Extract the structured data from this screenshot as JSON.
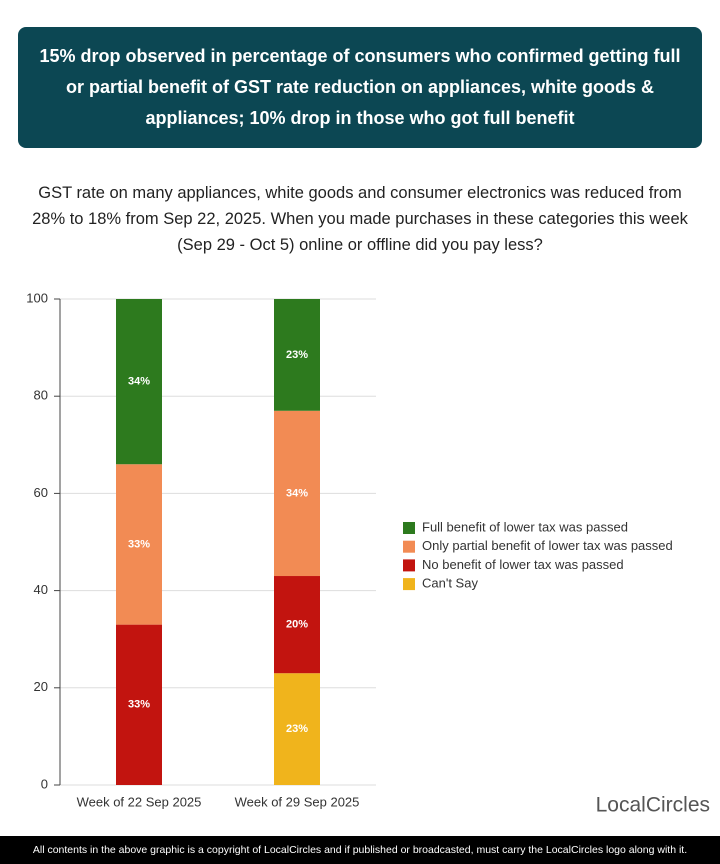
{
  "chart_data": {
    "type": "stacked_bar",
    "title": "15% drop observed in percentage of consumers who confirmed getting full or partial benefit of GST rate reduction on appliances, white goods & appliances; 10% drop in those who got full benefit",
    "subtitle": "GST rate on many appliances, white goods and consumer electronics was reduced from 28% to 18% from Sep 22, 2025. When you made purchases in these categories this week (Sep 29 - Oct 5) online or offline did you pay less?",
    "categories": [
      "Week of 22 Sep 2025",
      "Week of 29 Sep 2025"
    ],
    "series": [
      {
        "name": "Full benefit of lower tax was passed",
        "color": "#2d7a1e",
        "values": [
          34,
          23
        ],
        "value_labels": [
          "34%",
          "23%"
        ]
      },
      {
        "name": "Only partial benefit of lower tax was passed",
        "color": "#f28b54",
        "values": [
          33,
          34
        ],
        "value_labels": [
          "33%",
          "34%"
        ]
      },
      {
        "name": "No benefit of lower tax was passed",
        "color": "#c2140f",
        "values": [
          33,
          20
        ],
        "value_labels": [
          "33%",
          "20%"
        ]
      },
      {
        "name": "Can't Say",
        "color": "#f0b41c",
        "values": [
          0,
          23
        ],
        "value_labels": [
          null,
          "23%"
        ]
      }
    ],
    "ylim": [
      0,
      100
    ],
    "yticks": [
      0,
      20,
      40,
      60,
      80,
      100
    ],
    "grid": true,
    "legend": "right",
    "logo": "LocalCircles",
    "footer": "All contents in the above graphic is a copyright of LocalCircles and if published or broadcasted, must carry the LocalCircles logo along with it."
  }
}
